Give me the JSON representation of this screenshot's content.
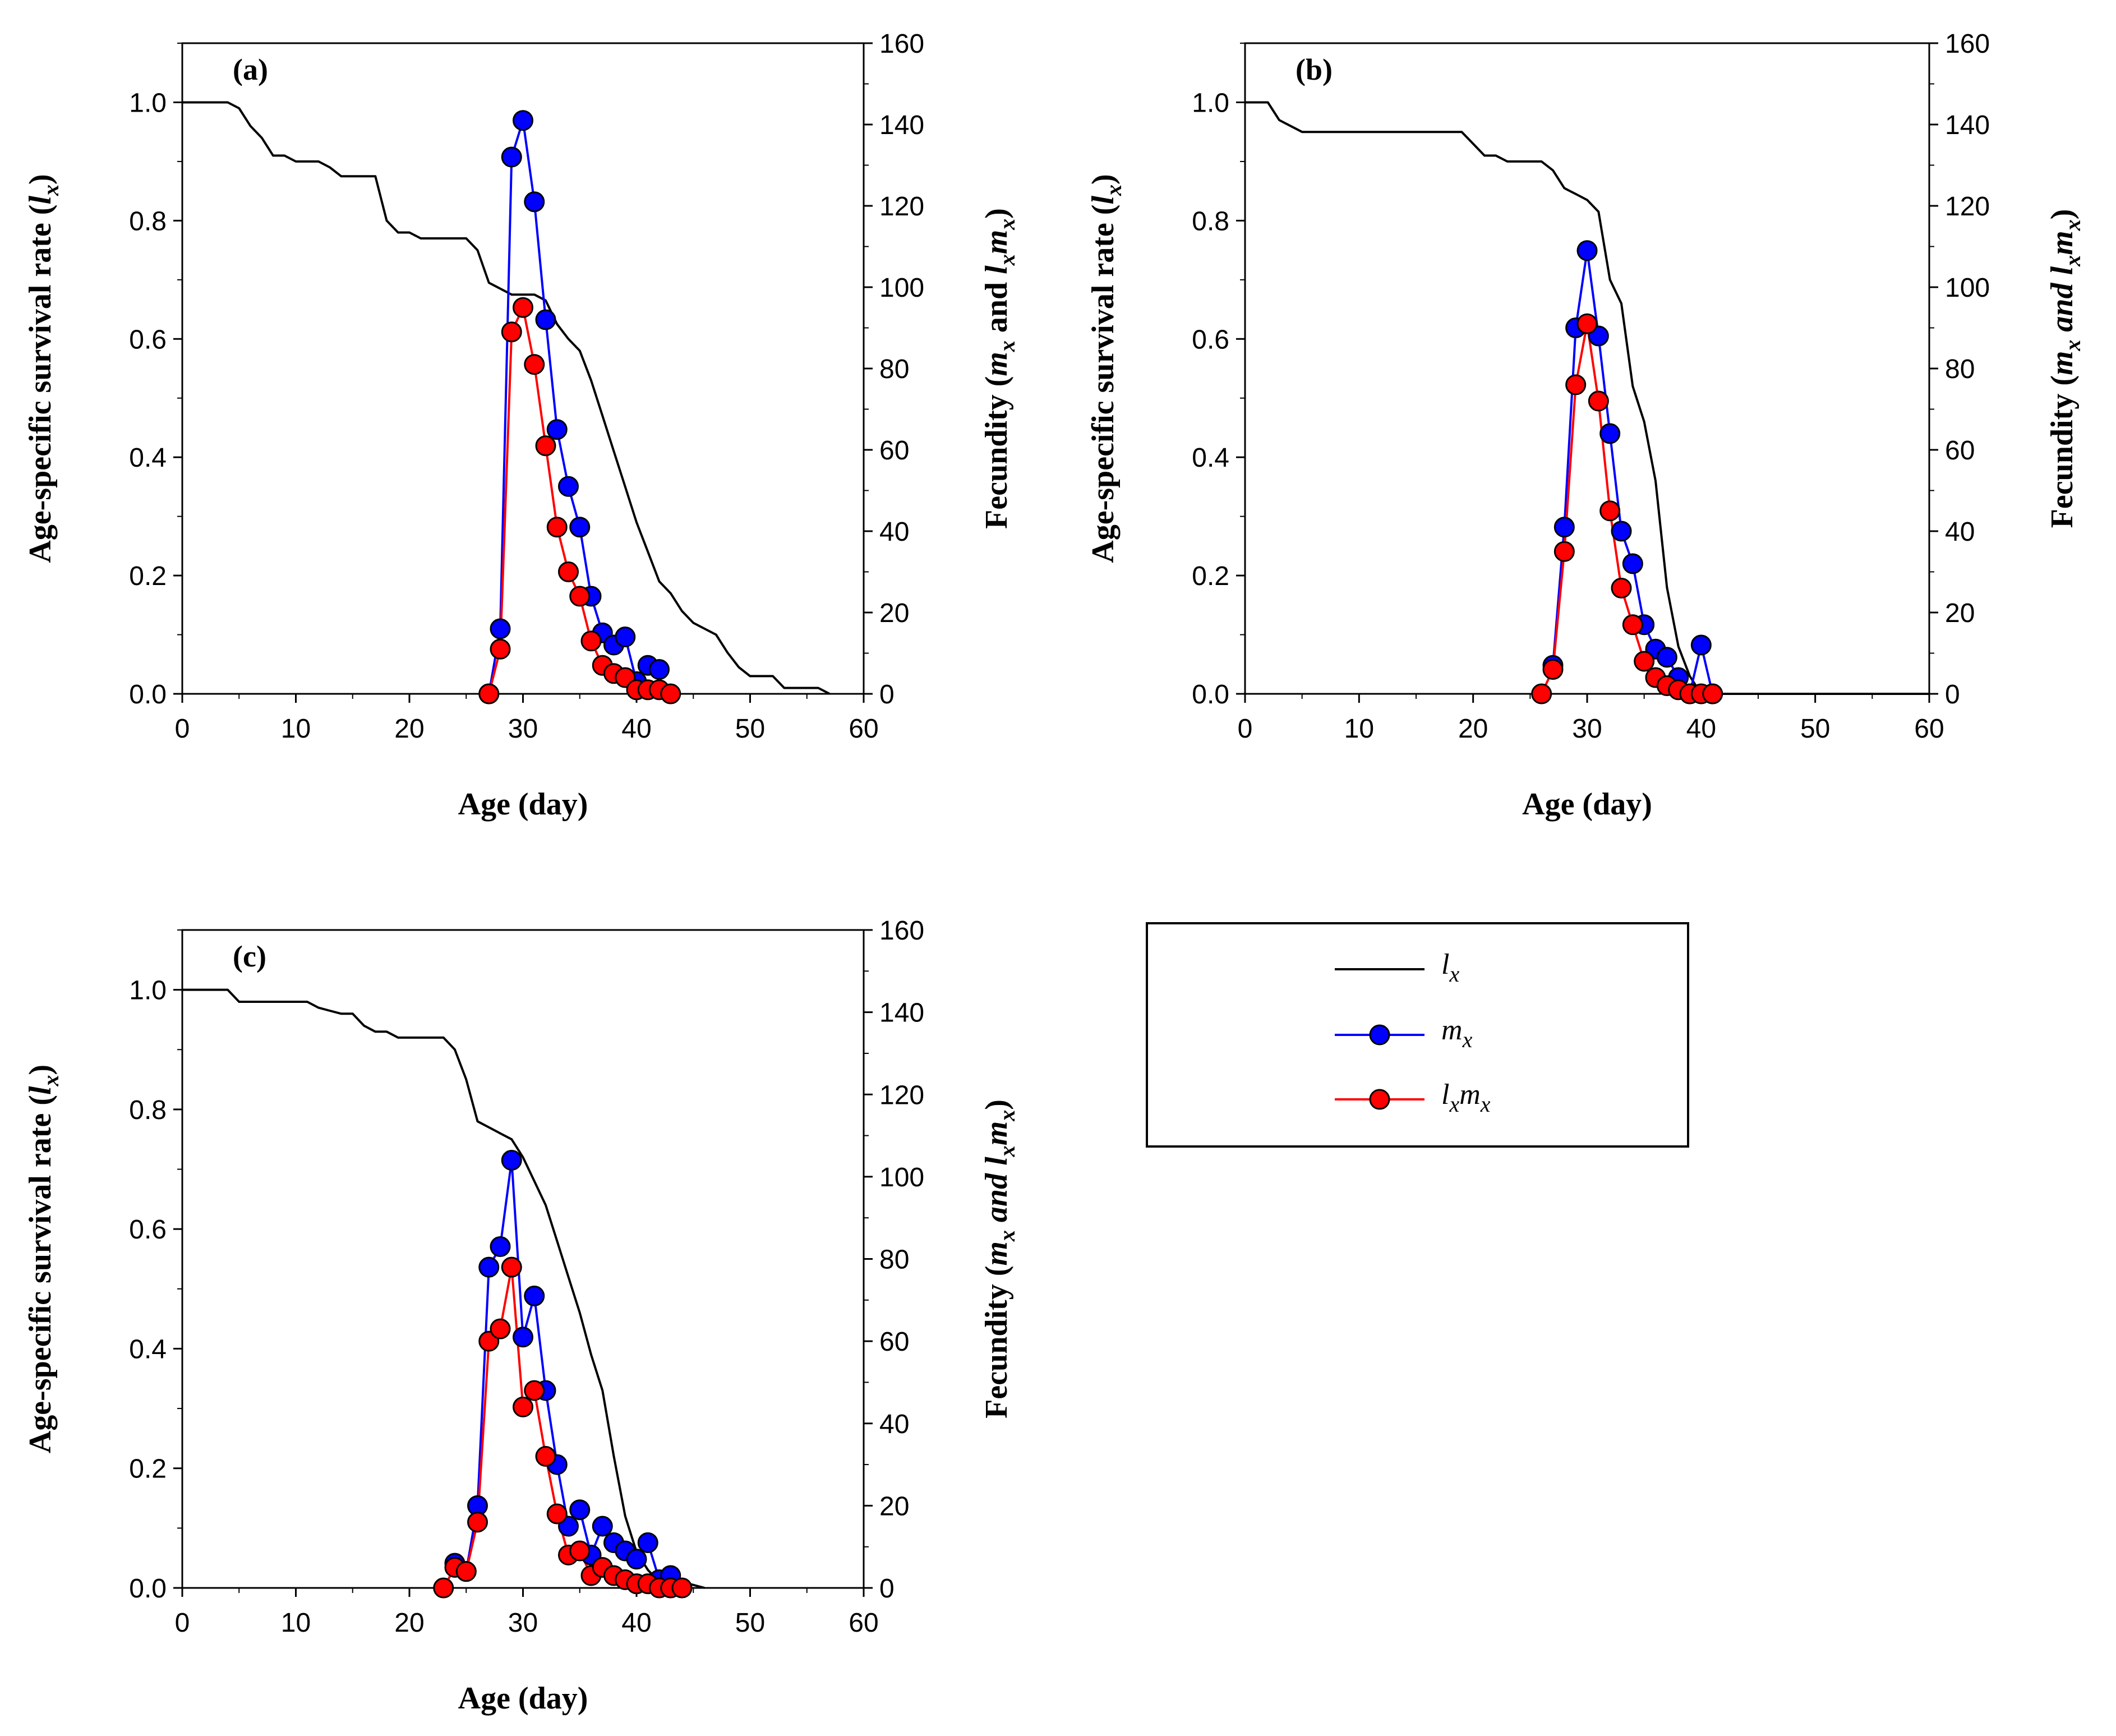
{
  "figure": {
    "legend": {
      "entries": [
        {
          "key": "lx",
          "main": "l",
          "sub": "x",
          "color": "#000000",
          "marker": false
        },
        {
          "key": "mx",
          "main": "m",
          "sub": "x",
          "color": "#0000ff",
          "marker": true,
          "fill": "#0000ff"
        },
        {
          "key": "lxmx",
          "main": "l",
          "sub": "x",
          "main2": "m",
          "sub2": "x",
          "color": "#ff0000",
          "marker": true,
          "fill": "#ff0000"
        }
      ]
    },
    "axis_text": {
      "x_title": "Age (day)",
      "y_left_prefix": "Age-specific survival rate (",
      "y_left_var": "l",
      "y_left_sub": "x",
      "y_left_suffix": ")",
      "y_right_prefix": "Fecundity (",
      "y_right_m": "m",
      "y_right_and": " and ",
      "y_right_l": "l",
      "y_right_sub": "x",
      "y_right_suffix": ")"
    }
  },
  "chart_data": [
    {
      "type": "line",
      "panel": "(a)",
      "xlim": [
        0,
        60
      ],
      "xticks": [
        0,
        10,
        20,
        30,
        40,
        50,
        60
      ],
      "ylim_left": [
        0,
        1.1
      ],
      "yticks_left": [
        "0.0",
        "0.2",
        "0.4",
        "0.6",
        "0.8",
        "1.0"
      ],
      "ylim_right": [
        0,
        160
      ],
      "yticks_right": [
        0,
        20,
        40,
        60,
        80,
        100,
        120,
        140,
        160
      ],
      "lx": [
        [
          0,
          1.0
        ],
        [
          4,
          1.0
        ],
        [
          5,
          0.99
        ],
        [
          6,
          0.96
        ],
        [
          7,
          0.94
        ],
        [
          8,
          0.91
        ],
        [
          9,
          0.91
        ],
        [
          10,
          0.9
        ],
        [
          12,
          0.9
        ],
        [
          13,
          0.89
        ],
        [
          14,
          0.875
        ],
        [
          17,
          0.875
        ],
        [
          18,
          0.8
        ],
        [
          19,
          0.78
        ],
        [
          20,
          0.78
        ],
        [
          21,
          0.77
        ],
        [
          25,
          0.77
        ],
        [
          26,
          0.75
        ],
        [
          27,
          0.695
        ],
        [
          28,
          0.685
        ],
        [
          29,
          0.675
        ],
        [
          31,
          0.675
        ],
        [
          32,
          0.665
        ],
        [
          33,
          0.625
        ],
        [
          34,
          0.6
        ],
        [
          35,
          0.58
        ],
        [
          36,
          0.53
        ],
        [
          37,
          0.47
        ],
        [
          38,
          0.41
        ],
        [
          39,
          0.35
        ],
        [
          40,
          0.29
        ],
        [
          41,
          0.24
        ],
        [
          42,
          0.19
        ],
        [
          43,
          0.17
        ],
        [
          44,
          0.14
        ],
        [
          45,
          0.12
        ],
        [
          46,
          0.11
        ],
        [
          47,
          0.1
        ],
        [
          48,
          0.07
        ],
        [
          49,
          0.045
        ],
        [
          50,
          0.03
        ],
        [
          52,
          0.03
        ],
        [
          53,
          0.01
        ],
        [
          56,
          0.01
        ],
        [
          57,
          0.0
        ]
      ],
      "mx": [
        [
          27,
          0
        ],
        [
          28,
          16
        ],
        [
          29,
          132
        ],
        [
          30,
          141
        ],
        [
          31,
          121
        ],
        [
          32,
          92
        ],
        [
          33,
          65
        ],
        [
          34,
          51
        ],
        [
          35,
          41
        ],
        [
          36,
          24
        ],
        [
          37,
          15
        ],
        [
          38,
          12
        ],
        [
          39,
          14
        ],
        [
          40,
          3
        ],
        [
          41,
          7
        ],
        [
          42,
          6
        ]
      ],
      "lxmx": [
        [
          27,
          0
        ],
        [
          28,
          11
        ],
        [
          29,
          89
        ],
        [
          30,
          95
        ],
        [
          31,
          81
        ],
        [
          32,
          61
        ],
        [
          33,
          41
        ],
        [
          34,
          30
        ],
        [
          35,
          24
        ],
        [
          36,
          13
        ],
        [
          37,
          7
        ],
        [
          38,
          5
        ],
        [
          39,
          4
        ],
        [
          40,
          1
        ],
        [
          41,
          1
        ],
        [
          42,
          1
        ],
        [
          43,
          0
        ]
      ]
    },
    {
      "type": "line",
      "panel": "(b)",
      "xlim": [
        0,
        60
      ],
      "xticks": [
        0,
        10,
        20,
        30,
        40,
        50,
        60
      ],
      "ylim_left": [
        0,
        1.1
      ],
      "yticks_left": [
        "0.0",
        "0.2",
        "0.4",
        "0.6",
        "0.8",
        "1.0"
      ],
      "ylim_right": [
        0,
        160
      ],
      "yticks_right": [
        0,
        20,
        40,
        60,
        80,
        100,
        120,
        140,
        160
      ],
      "lx": [
        [
          0,
          1.0
        ],
        [
          2,
          1.0
        ],
        [
          3,
          0.97
        ],
        [
          5,
          0.95
        ],
        [
          19,
          0.95
        ],
        [
          20,
          0.93
        ],
        [
          21,
          0.91
        ],
        [
          22,
          0.91
        ],
        [
          23,
          0.9
        ],
        [
          26,
          0.9
        ],
        [
          27,
          0.885
        ],
        [
          28,
          0.855
        ],
        [
          29,
          0.845
        ],
        [
          30,
          0.835
        ],
        [
          31,
          0.815
        ],
        [
          32,
          0.7
        ],
        [
          33,
          0.66
        ],
        [
          34,
          0.52
        ],
        [
          35,
          0.46
        ],
        [
          36,
          0.36
        ],
        [
          37,
          0.18
        ],
        [
          38,
          0.08
        ],
        [
          39,
          0.03
        ],
        [
          40,
          0.0
        ],
        [
          60,
          0.0
        ]
      ],
      "mx": [
        [
          27,
          7
        ],
        [
          28,
          41
        ],
        [
          29,
          90
        ],
        [
          30,
          109
        ],
        [
          31,
          88
        ],
        [
          32,
          64
        ],
        [
          33,
          40
        ],
        [
          34,
          32
        ],
        [
          35,
          17
        ],
        [
          36,
          11
        ],
        [
          37,
          9
        ],
        [
          38,
          4
        ],
        [
          39,
          0
        ],
        [
          40,
          12
        ],
        [
          41,
          0
        ]
      ],
      "lxmx": [
        [
          26,
          0
        ],
        [
          27,
          6
        ],
        [
          28,
          35
        ],
        [
          29,
          76
        ],
        [
          30,
          91
        ],
        [
          31,
          72
        ],
        [
          32,
          45
        ],
        [
          33,
          26
        ],
        [
          34,
          17
        ],
        [
          35,
          8
        ],
        [
          36,
          4
        ],
        [
          37,
          2
        ],
        [
          38,
          1
        ],
        [
          39,
          0
        ],
        [
          40,
          0
        ],
        [
          41,
          0
        ]
      ]
    },
    {
      "type": "line",
      "panel": "(c)",
      "xlim": [
        0,
        60
      ],
      "xticks": [
        0,
        10,
        20,
        30,
        40,
        50,
        60
      ],
      "ylim_left": [
        0,
        1.1
      ],
      "yticks_left": [
        "0.0",
        "0.2",
        "0.4",
        "0.6",
        "0.8",
        "1.0"
      ],
      "ylim_right": [
        0,
        160
      ],
      "yticks_right": [
        0,
        20,
        40,
        60,
        80,
        100,
        120,
        140,
        160
      ],
      "lx": [
        [
          0,
          1.0
        ],
        [
          4,
          1.0
        ],
        [
          5,
          0.98
        ],
        [
          11,
          0.98
        ],
        [
          12,
          0.97
        ],
        [
          13,
          0.965
        ],
        [
          14,
          0.96
        ],
        [
          15,
          0.96
        ],
        [
          16,
          0.94
        ],
        [
          17,
          0.93
        ],
        [
          18,
          0.93
        ],
        [
          19,
          0.92
        ],
        [
          23,
          0.92
        ],
        [
          24,
          0.9
        ],
        [
          25,
          0.85
        ],
        [
          26,
          0.78
        ],
        [
          27,
          0.77
        ],
        [
          28,
          0.76
        ],
        [
          29,
          0.75
        ],
        [
          30,
          0.72
        ],
        [
          31,
          0.68
        ],
        [
          32,
          0.64
        ],
        [
          33,
          0.58
        ],
        [
          34,
          0.52
        ],
        [
          35,
          0.46
        ],
        [
          36,
          0.39
        ],
        [
          37,
          0.33
        ],
        [
          38,
          0.22
        ],
        [
          39,
          0.12
        ],
        [
          40,
          0.06
        ],
        [
          41,
          0.03
        ],
        [
          42,
          0.01
        ],
        [
          44,
          0.01
        ],
        [
          45,
          0.005
        ],
        [
          46,
          0.0
        ]
      ],
      "mx": [
        [
          24,
          6
        ],
        [
          25,
          4
        ],
        [
          26,
          20
        ],
        [
          27,
          78
        ],
        [
          28,
          83
        ],
        [
          29,
          104
        ],
        [
          30,
          61
        ],
        [
          31,
          71
        ],
        [
          32,
          48
        ],
        [
          33,
          30
        ],
        [
          34,
          15
        ],
        [
          35,
          19
        ],
        [
          36,
          8
        ],
        [
          37,
          15
        ],
        [
          38,
          11
        ],
        [
          39,
          9
        ],
        [
          40,
          7
        ],
        [
          41,
          11
        ],
        [
          42,
          2
        ],
        [
          43,
          3
        ]
      ],
      "lxmx": [
        [
          23,
          0
        ],
        [
          24,
          5
        ],
        [
          25,
          4
        ],
        [
          26,
          16
        ],
        [
          27,
          60
        ],
        [
          28,
          63
        ],
        [
          29,
          78
        ],
        [
          30,
          44
        ],
        [
          31,
          48
        ],
        [
          32,
          32
        ],
        [
          33,
          18
        ],
        [
          34,
          8
        ],
        [
          35,
          9
        ],
        [
          36,
          3
        ],
        [
          37,
          5
        ],
        [
          38,
          3
        ],
        [
          39,
          2
        ],
        [
          40,
          1
        ],
        [
          41,
          1
        ],
        [
          42,
          0
        ],
        [
          43,
          0
        ],
        [
          44,
          0
        ]
      ]
    }
  ]
}
